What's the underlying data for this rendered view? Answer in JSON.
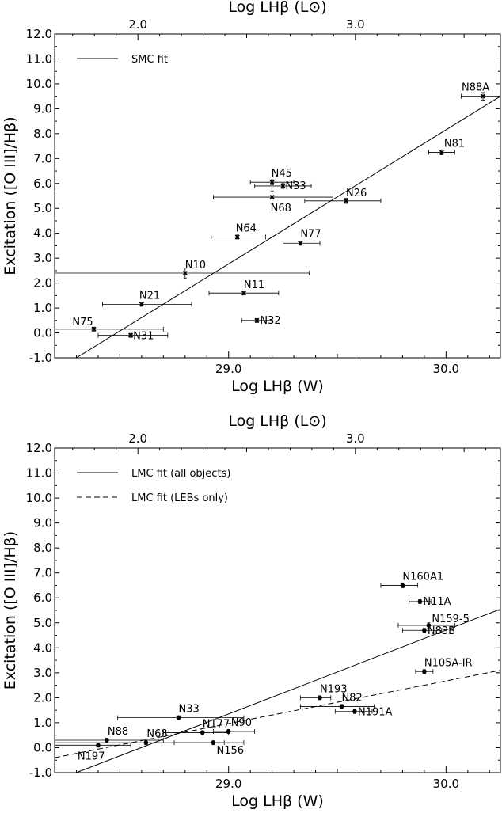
{
  "chart_data": [
    {
      "type": "scatter",
      "title": "",
      "xlabel": "Log LHβ (W)",
      "x2label": "Log LHβ (L⊙)",
      "ylabel": "Excitation ([O III]/Hβ)",
      "xlim": [
        28.2,
        30.25
      ],
      "ylim": [
        -1.0,
        12.0
      ],
      "x_ticks": [
        "29.0",
        "30.0"
      ],
      "x2_ticks": [
        "2.0",
        "3.0"
      ],
      "y_ticks": [
        "-1.0",
        "0.0",
        "1.0",
        "2.0",
        "3.0",
        "4.0",
        "5.0",
        "6.0",
        "7.0",
        "8.0",
        "9.0",
        "10.0",
        "11.0",
        "12.0"
      ],
      "legend": {
        "position": "top-left",
        "entries": [
          {
            "label": "SMC fit",
            "style": "solid"
          }
        ]
      },
      "fits": [
        {
          "legend": "SMC fit",
          "style": "solid",
          "points": [
            [
              28.3,
              -1.0
            ],
            [
              30.25,
              9.5
            ]
          ]
        }
      ],
      "marker": "cross",
      "points": [
        {
          "label": "N88A",
          "x": 30.17,
          "y": 9.5,
          "xerr": [
            30.07,
            30.27
          ],
          "yerr": 0.15
        },
        {
          "label": "N81",
          "x": 29.98,
          "y": 7.25,
          "xerr": [
            29.92,
            30.04
          ],
          "yerr": 0.1
        },
        {
          "label": "N45",
          "x": 29.2,
          "y": 6.05,
          "xerr": [
            29.1,
            29.3
          ],
          "yerr": 0.1
        },
        {
          "label": "N33",
          "x": 29.25,
          "y": 5.9,
          "xerr": [
            29.12,
            29.38
          ],
          "yerr": 0.1
        },
        {
          "label": "N68",
          "x": 29.2,
          "y": 5.45,
          "xerr": [
            28.93,
            29.48
          ],
          "yerr": 0.25
        },
        {
          "label": "N26",
          "x": 29.54,
          "y": 5.3,
          "xerr": [
            29.35,
            29.7
          ],
          "yerr": 0.1
        },
        {
          "label": "N64",
          "x": 29.04,
          "y": 3.85,
          "xerr": [
            28.92,
            29.17
          ],
          "yerr": 0.08
        },
        {
          "label": "N77",
          "x": 29.33,
          "y": 3.6,
          "xerr": [
            29.25,
            29.42
          ],
          "yerr": 0.08
        },
        {
          "label": "N10",
          "x": 28.8,
          "y": 2.4,
          "xerr": [
            28.2,
            29.37
          ],
          "yerr": 0.2
        },
        {
          "label": "N11",
          "x": 29.07,
          "y": 1.6,
          "xerr": [
            28.91,
            29.23
          ],
          "yerr": 0.08
        },
        {
          "label": "N21",
          "x": 28.6,
          "y": 1.15,
          "xerr": [
            28.42,
            28.83
          ],
          "yerr": 0.08
        },
        {
          "label": "N32",
          "x": 29.13,
          "y": 0.5,
          "xerr": [
            29.06,
            29.2
          ],
          "yerr": 0.08
        },
        {
          "label": "N75",
          "x": 28.38,
          "y": 0.15,
          "xerr": [
            28.2,
            28.7
          ],
          "yerr": 0.08
        },
        {
          "label": "N31",
          "x": 28.55,
          "y": -0.1,
          "xerr": [
            28.4,
            28.72
          ],
          "yerr": 0.08
        }
      ]
    },
    {
      "type": "scatter",
      "title": "",
      "xlabel": "Log LHβ (W)",
      "x2label": "Log LHβ (L⊙)",
      "ylabel": "Excitation ([O III]/Hβ)",
      "xlim": [
        28.2,
        30.25
      ],
      "ylim": [
        -1.0,
        12.0
      ],
      "x_ticks": [
        "29.0",
        "30.0"
      ],
      "x2_ticks": [
        "2.0",
        "3.0"
      ],
      "y_ticks": [
        "-1.0",
        "0.0",
        "1.0",
        "2.0",
        "3.0",
        "4.0",
        "5.0",
        "6.0",
        "7.0",
        "8.0",
        "9.0",
        "10.0",
        "11.0",
        "12.0"
      ],
      "legend": {
        "position": "top-left",
        "entries": [
          {
            "label": "LMC fit (all objects)",
            "style": "solid"
          },
          {
            "label": "LMC fit (LEBs only)",
            "style": "dashed"
          }
        ]
      },
      "fits": [
        {
          "legend": "LMC fit (all objects)",
          "style": "solid",
          "points": [
            [
              28.3,
              -1.0
            ],
            [
              30.25,
              5.55
            ]
          ]
        },
        {
          "legend": "LMC fit (LEBs only)",
          "style": "dashed",
          "points": [
            [
              28.2,
              -0.4
            ],
            [
              30.25,
              3.1
            ]
          ]
        }
      ],
      "marker": "dot",
      "points": [
        {
          "label": "N160A1",
          "x": 29.8,
          "y": 6.5,
          "xerr": [
            29.7,
            29.87
          ],
          "yerr": 0.1
        },
        {
          "label": "N11A",
          "x": 29.88,
          "y": 5.85,
          "xerr": [
            29.83,
            29.93
          ],
          "yerr": 0.08
        },
        {
          "label": "N159-5",
          "x": 29.92,
          "y": 4.9,
          "xerr": [
            29.78,
            30.04
          ],
          "yerr": 0.1
        },
        {
          "label": "N83B",
          "x": 29.9,
          "y": 4.7,
          "xerr": [
            29.8,
            29.98
          ],
          "yerr": 0.08
        },
        {
          "label": "N105A-IR",
          "x": 29.9,
          "y": 3.05,
          "xerr": [
            29.86,
            29.94
          ],
          "yerr": 0.08
        },
        {
          "label": "N193",
          "x": 29.42,
          "y": 2.0,
          "xerr": [
            29.33,
            29.47
          ],
          "yerr": 0.08
        },
        {
          "label": "N82",
          "x": 29.52,
          "y": 1.65,
          "xerr": [
            29.33,
            29.67
          ],
          "yerr": 0.08
        },
        {
          "label": "N191A",
          "x": 29.58,
          "y": 1.45,
          "xerr": [
            29.49,
            29.66
          ],
          "yerr": 0.08
        },
        {
          "label": "N33",
          "x": 28.77,
          "y": 1.2,
          "xerr": [
            28.49,
            29.07
          ],
          "yerr": 0.08
        },
        {
          "label": "N177",
          "x": 28.88,
          "y": 0.6,
          "xerr": [
            28.7,
            29.0
          ],
          "yerr": 0.08
        },
        {
          "label": "N90",
          "x": 29.0,
          "y": 0.65,
          "xerr": [
            28.93,
            29.12
          ],
          "yerr": 0.08
        },
        {
          "label": "N88",
          "x": 28.44,
          "y": 0.3,
          "xerr": [
            28.2,
            28.7
          ],
          "yerr": 0.08
        },
        {
          "label": "N68",
          "x": 28.62,
          "y": 0.2,
          "xerr": [
            28.2,
            28.98
          ],
          "yerr": 0.08
        },
        {
          "label": "N156",
          "x": 28.93,
          "y": 0.2,
          "xerr": [
            28.75,
            29.07
          ],
          "yerr": 0.08
        },
        {
          "label": "N197",
          "x": 28.4,
          "y": 0.1,
          "xerr": [
            28.2,
            28.55
          ],
          "yerr": 0.08
        }
      ]
    }
  ]
}
